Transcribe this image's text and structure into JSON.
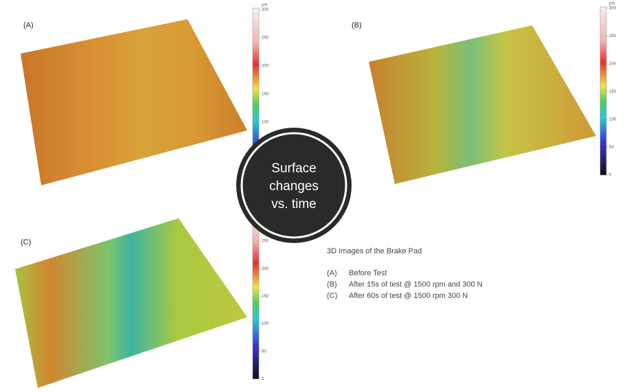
{
  "panels": [
    {
      "label": "(A)"
    },
    {
      "label": "(B)"
    },
    {
      "label": "(C)"
    }
  ],
  "scales": [
    {
      "unit": "µm",
      "ticks": [
        300,
        250,
        200,
        150,
        100
      ]
    },
    {
      "unit": "µm",
      "ticks": [
        300,
        250,
        200,
        150,
        100,
        50,
        0
      ]
    },
    {
      "ticks": [
        250,
        200,
        150,
        100,
        50,
        0
      ]
    }
  ],
  "badge": {
    "lines": [
      "Surface",
      "changes",
      "vs. time"
    ]
  },
  "caption": {
    "title": "3D Images of the Brake Pad",
    "items": [
      {
        "label": "(A)",
        "text": "Before Test"
      },
      {
        "label": "(B)",
        "text": "After 15s of test @ 1500 rpm and 300 N"
      },
      {
        "label": "(C)",
        "text": "After 60s of test @ 1500 rpm 300 N"
      }
    ]
  }
}
